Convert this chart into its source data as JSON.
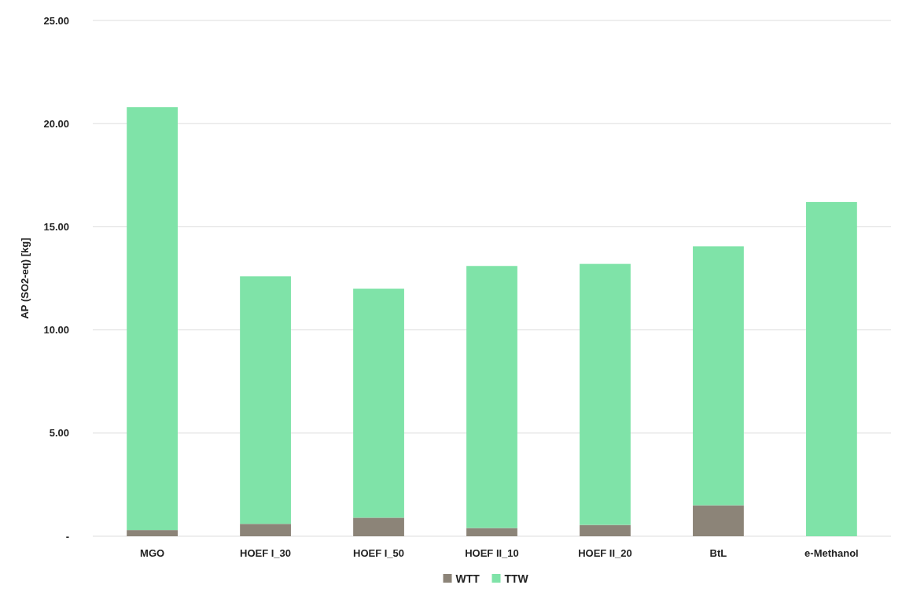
{
  "chart_data": {
    "type": "bar",
    "stacked": true,
    "ylabel": "AP (SO2-eq) [kg]",
    "categories": [
      "MGO",
      "HOEF I_30",
      "HOEF I_50",
      "HOEF II_10",
      "HOEF II_20",
      "BtL",
      "e-Methanol"
    ],
    "series": [
      {
        "name": "WTT",
        "color": "#8c8478",
        "values": [
          0.3,
          0.6,
          0.9,
          0.4,
          0.55,
          1.5,
          0
        ]
      },
      {
        "name": "TTW",
        "color": "#7fe3a8",
        "values": [
          20.5,
          12.0,
          11.1,
          12.7,
          12.65,
          12.55,
          16.2
        ]
      }
    ],
    "ylim": [
      0,
      25
    ],
    "yticks": [
      {
        "value": 0,
        "label": "-"
      },
      {
        "value": 5,
        "label": "5.00"
      },
      {
        "value": 10,
        "label": "10.00"
      },
      {
        "value": 15,
        "label": "15.00"
      },
      {
        "value": 20,
        "label": "20.00"
      },
      {
        "value": 25,
        "label": "25.00"
      }
    ],
    "grid": "y",
    "legend": "bottom"
  }
}
